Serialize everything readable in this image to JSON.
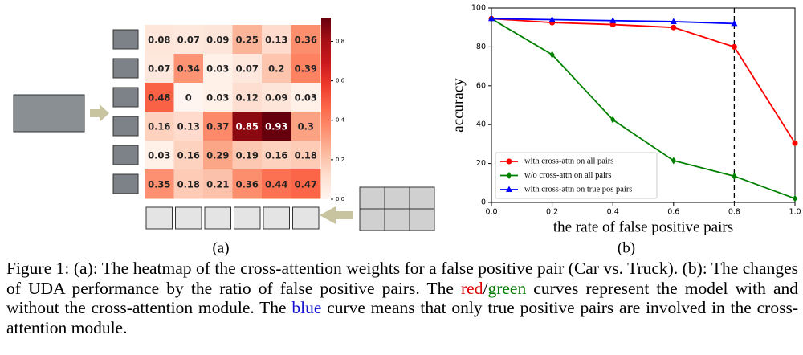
{
  "heatmap": {
    "rows": [
      [
        0.08,
        0.07,
        0.09,
        0.25,
        0.13,
        0.36
      ],
      [
        0.07,
        0.34,
        0.03,
        0.07,
        0.2,
        0.39
      ],
      [
        0.48,
        0,
        0.03,
        0.12,
        0.09,
        0.03
      ],
      [
        0.16,
        0.13,
        0.37,
        0.85,
        0.93,
        0.3
      ],
      [
        0.03,
        0.16,
        0.29,
        0.19,
        0.16,
        0.18
      ],
      [
        0.35,
        0.18,
        0.21,
        0.36,
        0.44,
        0.47
      ]
    ],
    "colorbar_lim": [
      0,
      0.92
    ],
    "colorbar_ticks": [
      {
        "value": 0,
        "label": "0.0"
      },
      0.2,
      0.4,
      0.6,
      0.8
    ],
    "label": "(a)"
  },
  "chart_data": {
    "type": "line",
    "x": [
      0,
      0.2,
      0.4,
      0.6,
      0.8,
      1.0
    ],
    "series": [
      {
        "name": "with cross-attn on all pairs",
        "color": "#ff0000",
        "marker": "circle",
        "values": [
          94.5,
          92.5,
          91.5,
          90,
          80,
          30.5
        ]
      },
      {
        "name": "w/o cross-attn on all pairs",
        "color": "#008000",
        "marker": "diamond",
        "values": [
          94.5,
          76,
          42.5,
          21.5,
          13.5,
          2
        ]
      },
      {
        "name": "with cross-attn on true pos pairs",
        "color": "#0000ff",
        "marker": "triangle",
        "values": [
          94.5,
          94,
          93.5,
          93,
          92,
          null
        ]
      }
    ],
    "xlim": [
      0,
      1.0
    ],
    "ylim": [
      0,
      100
    ],
    "xticks": [
      {
        "value": 0,
        "label": "0.0"
      },
      0.2,
      0.4,
      0.6,
      0.8,
      {
        "value": 1.0,
        "label": "1.0"
      }
    ],
    "yticks": [
      0,
      20,
      40,
      60,
      80,
      100
    ],
    "vline": 0.8,
    "xlabel": "the rate of false positive pairs",
    "ylabel": "accuracy",
    "legend": "lower left",
    "label": "(b)"
  },
  "caption": [
    {
      "text": "Figure 1: (a): The heatmap of the cross-attention weights for a false positive pair (Car vs. Truck). (b): The changes of UDA performance by the ratio of false positive pairs. The "
    },
    {
      "text": "red",
      "color": "#e00000"
    },
    {
      "text": "/"
    },
    {
      "text": "green",
      "color": "#007a00"
    },
    {
      "text": " curves represent the model with and without the cross-attention module. The "
    },
    {
      "text": "blue",
      "color": "#1010d0"
    },
    {
      "text": " curve means that only true positive pairs are involved in the cross-attention module."
    }
  ]
}
